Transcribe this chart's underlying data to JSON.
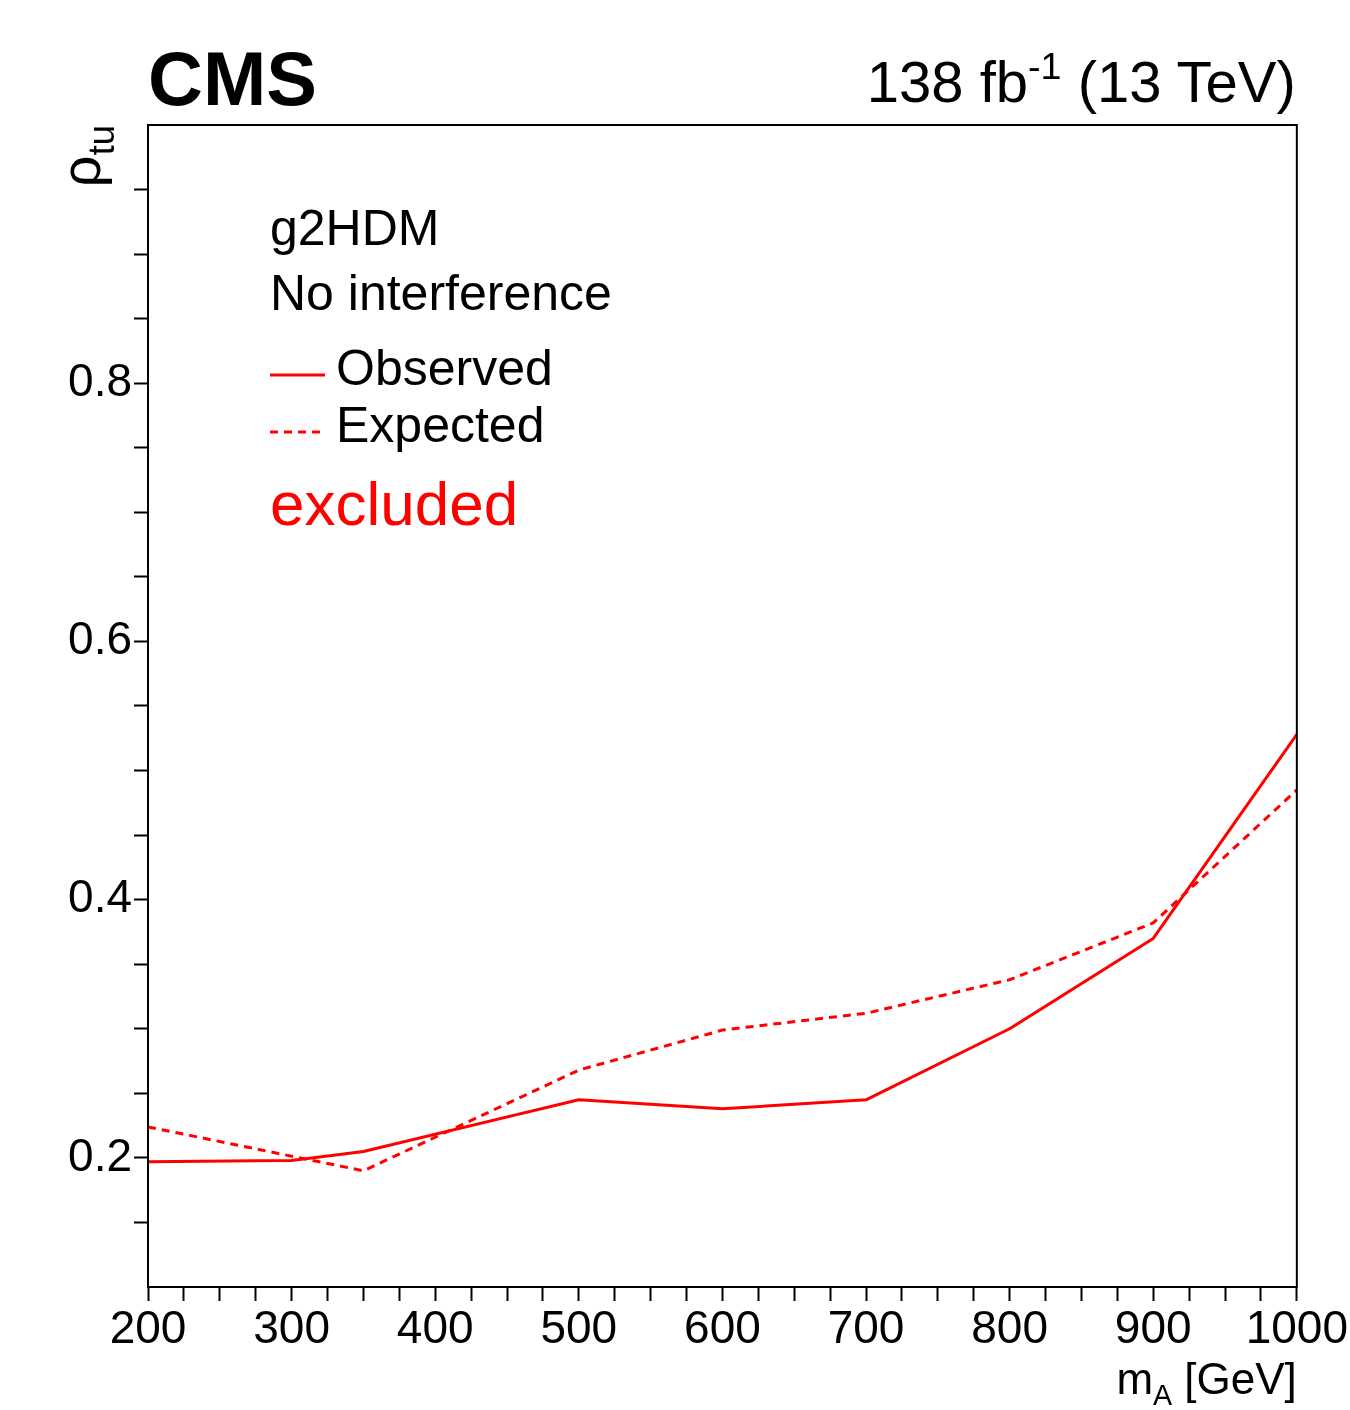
{
  "chart_data": {
    "type": "line",
    "title": "CMS",
    "subtitle": "138 fb$^{-1}$ (13 TeV)",
    "xlabel": "m$_{A}$ [GeV]",
    "ylabel": "ρ$_{tu}$",
    "xlim": [
      200,
      1000
    ],
    "ylim": [
      0.1,
      1.0
    ],
    "xticks": [
      200,
      {
        "value": 225,
        "label": null
      },
      {
        "value": 250,
        "label": null
      },
      {
        "value": 275,
        "label": null
      },
      300,
      {
        "value": 325,
        "label": null
      },
      {
        "value": 350,
        "label": null
      },
      {
        "value": 375,
        "label": null
      },
      400,
      {
        "value": 425,
        "label": null
      },
      {
        "value": 450,
        "label": null
      },
      {
        "value": 475,
        "label": null
      },
      500,
      {
        "value": 525,
        "label": null
      },
      {
        "value": 550,
        "label": null
      },
      {
        "value": 575,
        "label": null
      },
      600,
      {
        "value": 625,
        "label": null
      },
      {
        "value": 650,
        "label": null
      },
      {
        "value": 675,
        "label": null
      },
      700,
      {
        "value": 725,
        "label": null
      },
      {
        "value": 750,
        "label": null
      },
      {
        "value": 775,
        "label": null
      },
      800,
      {
        "value": 825,
        "label": null
      },
      {
        "value": 850,
        "label": null
      },
      {
        "value": 875,
        "label": null
      },
      900,
      {
        "value": 925,
        "label": null
      },
      {
        "value": 950,
        "label": null
      },
      {
        "value": 975,
        "label": null
      },
      1000
    ],
    "yticks": [
      {
        "value": 0.15,
        "label": null
      },
      0.2,
      {
        "value": 0.25,
        "label": null
      },
      {
        "value": 0.3,
        "label": null
      },
      {
        "value": 0.35,
        "label": null
      },
      0.4,
      {
        "value": 0.45,
        "label": null
      },
      {
        "value": 0.5,
        "label": null
      },
      {
        "value": 0.55,
        "label": null
      },
      0.6,
      {
        "value": 0.65,
        "label": null
      },
      {
        "value": 0.7,
        "label": null
      },
      {
        "value": 0.75,
        "label": null
      },
      0.8,
      {
        "value": 0.85,
        "label": null
      },
      {
        "value": 0.9,
        "label": null
      },
      {
        "value": 0.95,
        "label": null
      }
    ],
    "series": [
      {
        "name": "Observed",
        "color": "#ff0000",
        "line_style": "solid",
        "x": [
          200,
          300,
          350,
          500,
          600,
          700,
          800,
          900,
          1000
        ],
        "values": [
          0.197,
          0.198,
          0.205,
          0.245,
          0.238,
          0.245,
          0.3,
          0.37,
          0.528
        ]
      },
      {
        "name": "Expected",
        "color": "#ff0000",
        "line_style": "dashed",
        "x": [
          200,
          350,
          500,
          600,
          700,
          800,
          900,
          1000
        ],
        "values": [
          0.224,
          0.19,
          0.268,
          0.299,
          0.312,
          0.338,
          0.382,
          0.485
        ]
      }
    ],
    "annotations": [
      "g2HDM",
      "No interference",
      "excluded"
    ],
    "legend": "top left",
    "grid": false,
    "marker": "none"
  }
}
